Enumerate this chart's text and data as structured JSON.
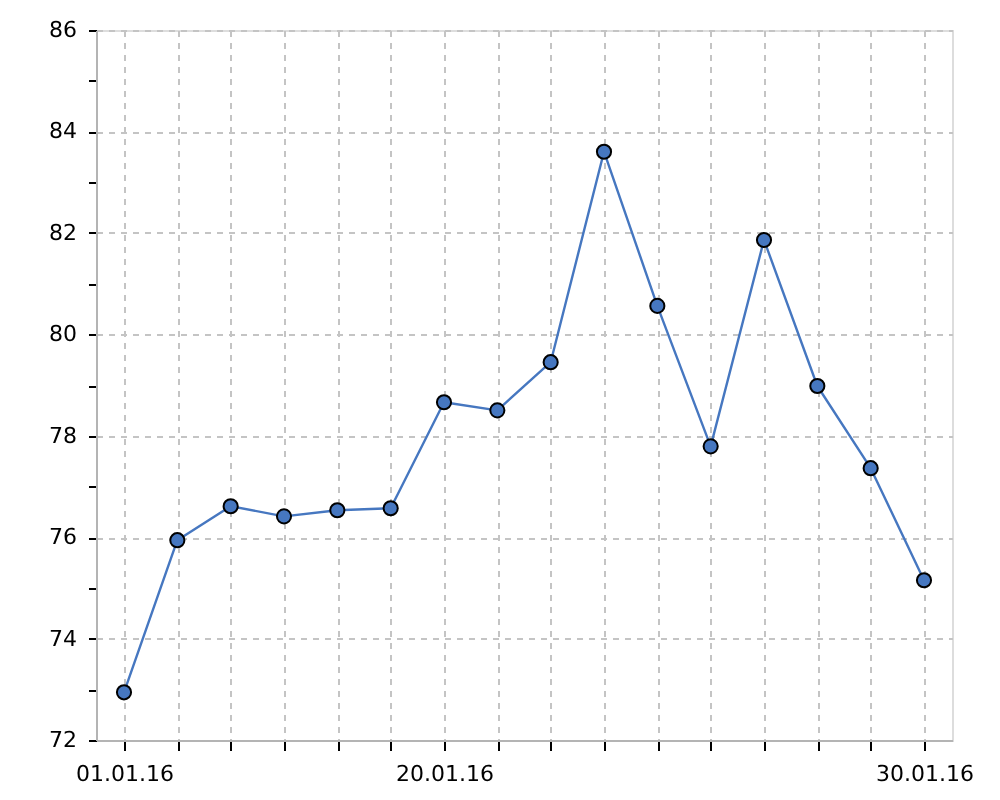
{
  "chart_data": {
    "type": "line",
    "categories": [
      "01.01.16",
      null,
      null,
      null,
      null,
      null,
      "20.01.16",
      null,
      null,
      null,
      null,
      null,
      null,
      null,
      null,
      "30.01.16"
    ],
    "series": [
      {
        "color": "#4677c0",
        "values": [
          72.94,
          75.94,
          76.61,
          76.41,
          76.53,
          76.57,
          78.66,
          78.5,
          79.45,
          83.6,
          80.56,
          77.79,
          81.86,
          78.98,
          77.36,
          75.15
        ]
      }
    ],
    "ylim": [
      72,
      86
    ],
    "yticks": [
      72,
      {
        "value": 73,
        "label": null
      },
      74,
      {
        "value": 75,
        "label": null
      },
      76,
      {
        "value": 77,
        "label": null
      },
      78,
      {
        "value": 79,
        "label": null
      },
      80,
      {
        "value": 81,
        "label": null
      },
      82,
      {
        "value": 83,
        "label": null
      },
      84,
      {
        "value": 85,
        "label": null
      },
      86
    ],
    "grid": true,
    "marker": "circle",
    "line_style": "solid"
  }
}
